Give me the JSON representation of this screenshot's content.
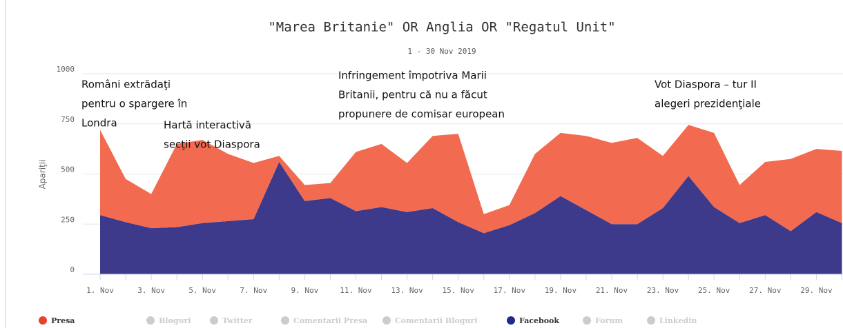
{
  "chart_data": {
    "type": "stacked_area",
    "title": "\"Marea Britanie\" OR Anglia OR \"Regatul Unit\"",
    "subtitle": "1 - 30 Nov 2019",
    "y_label": "Apariţii",
    "categories": [
      "1. Nov",
      null,
      "3. Nov",
      null,
      "5. Nov",
      null,
      "7. Nov",
      null,
      "9. Nov",
      null,
      "11. Nov",
      null,
      "13. Nov",
      null,
      "15. Nov",
      null,
      "17. Nov",
      null,
      "19. Nov",
      null,
      "21. Nov",
      null,
      "23. Nov",
      null,
      "25. Nov",
      null,
      "27. Nov",
      null,
      "29. Nov",
      null
    ],
    "ylim": [
      0,
      1000
    ],
    "yticks": [
      0,
      250,
      500,
      750,
      1000
    ],
    "grid": true,
    "series": [
      {
        "name": "Facebook",
        "color": "#3d3a8c",
        "legend_color": "#1f2a8a",
        "values": [
          295,
          260,
          230,
          235,
          255,
          265,
          275,
          560,
          365,
          380,
          315,
          335,
          310,
          330,
          260,
          205,
          245,
          305,
          390,
          320,
          250,
          250,
          330,
          490,
          335,
          255,
          295,
          215,
          310,
          255
        ]
      },
      {
        "name": "Presa",
        "color": "#f26a4f",
        "legend_color": "#e8412c",
        "values": [
          425,
          215,
          170,
          415,
          415,
          335,
          280,
          30,
          80,
          75,
          295,
          315,
          245,
          360,
          440,
          95,
          100,
          295,
          315,
          370,
          405,
          430,
          260,
          255,
          370,
          190,
          265,
          360,
          315,
          360
        ]
      }
    ],
    "legend": [
      {
        "name": "Presa",
        "active": true
      },
      {
        "name": "Bloguri",
        "active": false
      },
      {
        "name": "Twitter",
        "active": false
      },
      {
        "name": "Comentarii Presa",
        "active": false
      },
      {
        "name": "Comentarii Bloguri",
        "active": false
      },
      {
        "name": "Facebook",
        "active": true
      },
      {
        "name": "Forum",
        "active": false
      },
      {
        "name": "Linkedin",
        "active": false
      }
    ],
    "annotations": [
      {
        "lines": [
          "Români extrădaţi",
          "pentru o spargere în",
          "Londra"
        ]
      },
      {
        "lines": [
          "Hartă interactivă",
          "secţii vot Diaspora"
        ]
      },
      {
        "lines": [
          "Infringement împotriva Marii",
          "Britanii, pentru că nu a făcut",
          "propunere de comisar european"
        ]
      },
      {
        "lines": [
          "Vot Diaspora – tur II",
          "alegeri prezidenţiale"
        ]
      }
    ]
  }
}
